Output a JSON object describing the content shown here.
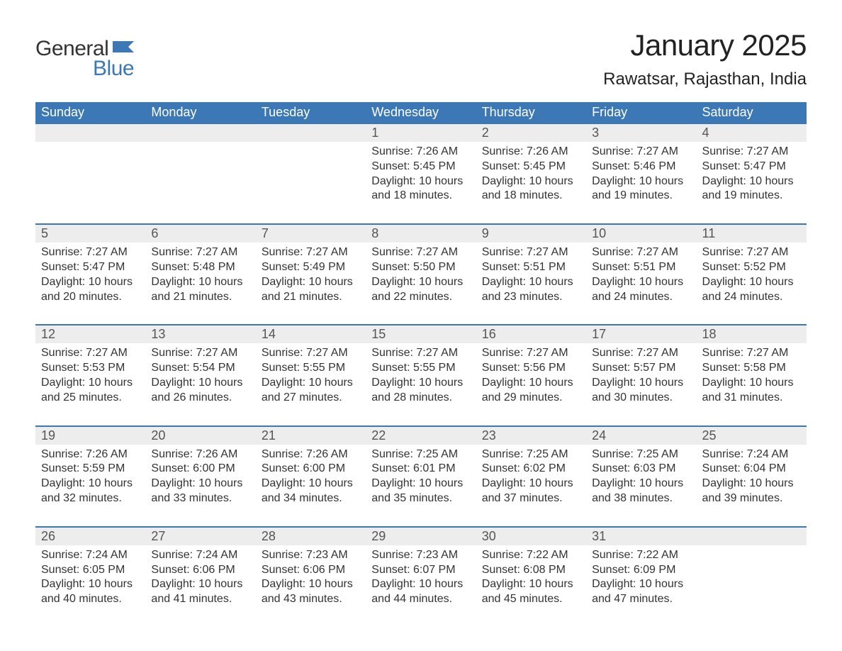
{
  "logo": {
    "word1": "General",
    "word2": "Blue",
    "brand_color": "#3b78b5"
  },
  "title": "January 2025",
  "location": "Rawatsar, Rajasthan, India",
  "colors": {
    "header_bg": "#3b78b5",
    "header_text": "#ffffff",
    "daynum_bg": "#ededed",
    "daynum_border": "#3b78b5",
    "body_text": "#333333",
    "daynum_text": "#555555",
    "page_bg": "#ffffff"
  },
  "fonts": {
    "title_size_pt": 32,
    "location_size_pt": 18,
    "header_size_pt": 14,
    "body_size_pt": 12
  },
  "weekdays": [
    "Sunday",
    "Monday",
    "Tuesday",
    "Wednesday",
    "Thursday",
    "Friday",
    "Saturday"
  ],
  "weeks": [
    [
      null,
      null,
      null,
      {
        "n": "1",
        "sr": "Sunrise: 7:26 AM",
        "ss": "Sunset: 5:45 PM",
        "d1": "Daylight: 10 hours",
        "d2": "and 18 minutes."
      },
      {
        "n": "2",
        "sr": "Sunrise: 7:26 AM",
        "ss": "Sunset: 5:45 PM",
        "d1": "Daylight: 10 hours",
        "d2": "and 18 minutes."
      },
      {
        "n": "3",
        "sr": "Sunrise: 7:27 AM",
        "ss": "Sunset: 5:46 PM",
        "d1": "Daylight: 10 hours",
        "d2": "and 19 minutes."
      },
      {
        "n": "4",
        "sr": "Sunrise: 7:27 AM",
        "ss": "Sunset: 5:47 PM",
        "d1": "Daylight: 10 hours",
        "d2": "and 19 minutes."
      }
    ],
    [
      {
        "n": "5",
        "sr": "Sunrise: 7:27 AM",
        "ss": "Sunset: 5:47 PM",
        "d1": "Daylight: 10 hours",
        "d2": "and 20 minutes."
      },
      {
        "n": "6",
        "sr": "Sunrise: 7:27 AM",
        "ss": "Sunset: 5:48 PM",
        "d1": "Daylight: 10 hours",
        "d2": "and 21 minutes."
      },
      {
        "n": "7",
        "sr": "Sunrise: 7:27 AM",
        "ss": "Sunset: 5:49 PM",
        "d1": "Daylight: 10 hours",
        "d2": "and 21 minutes."
      },
      {
        "n": "8",
        "sr": "Sunrise: 7:27 AM",
        "ss": "Sunset: 5:50 PM",
        "d1": "Daylight: 10 hours",
        "d2": "and 22 minutes."
      },
      {
        "n": "9",
        "sr": "Sunrise: 7:27 AM",
        "ss": "Sunset: 5:51 PM",
        "d1": "Daylight: 10 hours",
        "d2": "and 23 minutes."
      },
      {
        "n": "10",
        "sr": "Sunrise: 7:27 AM",
        "ss": "Sunset: 5:51 PM",
        "d1": "Daylight: 10 hours",
        "d2": "and 24 minutes."
      },
      {
        "n": "11",
        "sr": "Sunrise: 7:27 AM",
        "ss": "Sunset: 5:52 PM",
        "d1": "Daylight: 10 hours",
        "d2": "and 24 minutes."
      }
    ],
    [
      {
        "n": "12",
        "sr": "Sunrise: 7:27 AM",
        "ss": "Sunset: 5:53 PM",
        "d1": "Daylight: 10 hours",
        "d2": "and 25 minutes."
      },
      {
        "n": "13",
        "sr": "Sunrise: 7:27 AM",
        "ss": "Sunset: 5:54 PM",
        "d1": "Daylight: 10 hours",
        "d2": "and 26 minutes."
      },
      {
        "n": "14",
        "sr": "Sunrise: 7:27 AM",
        "ss": "Sunset: 5:55 PM",
        "d1": "Daylight: 10 hours",
        "d2": "and 27 minutes."
      },
      {
        "n": "15",
        "sr": "Sunrise: 7:27 AM",
        "ss": "Sunset: 5:55 PM",
        "d1": "Daylight: 10 hours",
        "d2": "and 28 minutes."
      },
      {
        "n": "16",
        "sr": "Sunrise: 7:27 AM",
        "ss": "Sunset: 5:56 PM",
        "d1": "Daylight: 10 hours",
        "d2": "and 29 minutes."
      },
      {
        "n": "17",
        "sr": "Sunrise: 7:27 AM",
        "ss": "Sunset: 5:57 PM",
        "d1": "Daylight: 10 hours",
        "d2": "and 30 minutes."
      },
      {
        "n": "18",
        "sr": "Sunrise: 7:27 AM",
        "ss": "Sunset: 5:58 PM",
        "d1": "Daylight: 10 hours",
        "d2": "and 31 minutes."
      }
    ],
    [
      {
        "n": "19",
        "sr": "Sunrise: 7:26 AM",
        "ss": "Sunset: 5:59 PM",
        "d1": "Daylight: 10 hours",
        "d2": "and 32 minutes."
      },
      {
        "n": "20",
        "sr": "Sunrise: 7:26 AM",
        "ss": "Sunset: 6:00 PM",
        "d1": "Daylight: 10 hours",
        "d2": "and 33 minutes."
      },
      {
        "n": "21",
        "sr": "Sunrise: 7:26 AM",
        "ss": "Sunset: 6:00 PM",
        "d1": "Daylight: 10 hours",
        "d2": "and 34 minutes."
      },
      {
        "n": "22",
        "sr": "Sunrise: 7:25 AM",
        "ss": "Sunset: 6:01 PM",
        "d1": "Daylight: 10 hours",
        "d2": "and 35 minutes."
      },
      {
        "n": "23",
        "sr": "Sunrise: 7:25 AM",
        "ss": "Sunset: 6:02 PM",
        "d1": "Daylight: 10 hours",
        "d2": "and 37 minutes."
      },
      {
        "n": "24",
        "sr": "Sunrise: 7:25 AM",
        "ss": "Sunset: 6:03 PM",
        "d1": "Daylight: 10 hours",
        "d2": "and 38 minutes."
      },
      {
        "n": "25",
        "sr": "Sunrise: 7:24 AM",
        "ss": "Sunset: 6:04 PM",
        "d1": "Daylight: 10 hours",
        "d2": "and 39 minutes."
      }
    ],
    [
      {
        "n": "26",
        "sr": "Sunrise: 7:24 AM",
        "ss": "Sunset: 6:05 PM",
        "d1": "Daylight: 10 hours",
        "d2": "and 40 minutes."
      },
      {
        "n": "27",
        "sr": "Sunrise: 7:24 AM",
        "ss": "Sunset: 6:06 PM",
        "d1": "Daylight: 10 hours",
        "d2": "and 41 minutes."
      },
      {
        "n": "28",
        "sr": "Sunrise: 7:23 AM",
        "ss": "Sunset: 6:06 PM",
        "d1": "Daylight: 10 hours",
        "d2": "and 43 minutes."
      },
      {
        "n": "29",
        "sr": "Sunrise: 7:23 AM",
        "ss": "Sunset: 6:07 PM",
        "d1": "Daylight: 10 hours",
        "d2": "and 44 minutes."
      },
      {
        "n": "30",
        "sr": "Sunrise: 7:22 AM",
        "ss": "Sunset: 6:08 PM",
        "d1": "Daylight: 10 hours",
        "d2": "and 45 minutes."
      },
      {
        "n": "31",
        "sr": "Sunrise: 7:22 AM",
        "ss": "Sunset: 6:09 PM",
        "d1": "Daylight: 10 hours",
        "d2": "and 47 minutes."
      },
      null
    ]
  ]
}
